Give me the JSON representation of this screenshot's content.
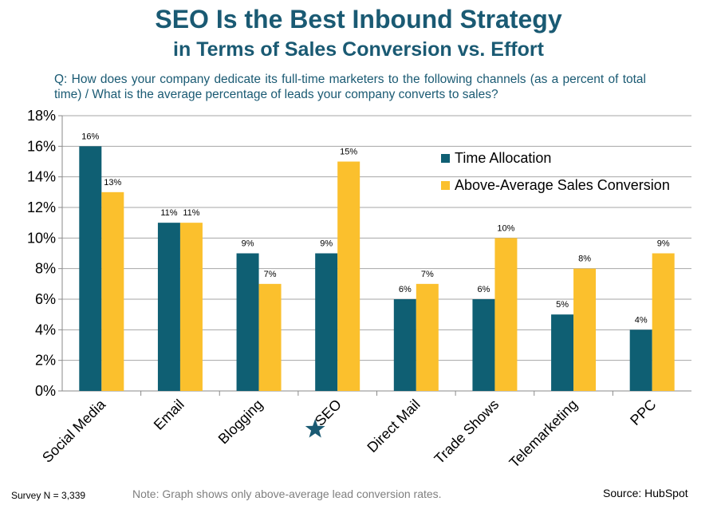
{
  "title_line1": "SEO Is the Best Inbound Strategy",
  "title_line2": "in Terms of Sales Conversion vs. Effort",
  "question": "Q: How does your company dedicate its full-time marketers to the following channels (as a percent of total time) / What is the average percentage of leads your company converts to sales?",
  "footer": {
    "survey": "Survey N = 3,339",
    "note": "Note: Graph shows only above-average lead conversion rates.",
    "source": "Source: HubSpot"
  },
  "highlight": {
    "category": "SEO",
    "icon": "star-icon",
    "color": "#1a5a73"
  },
  "chart_data": {
    "type": "bar",
    "categories": [
      "Social Media",
      "Email",
      "Blogging",
      "SEO",
      "Direct Mail",
      "Trade Shows",
      "Telemarketing",
      "PPC"
    ],
    "series": [
      {
        "name": "Time Allocation",
        "values": [
          16,
          11,
          9,
          9,
          6,
          6,
          5,
          4
        ],
        "color": "#0f5f73"
      },
      {
        "name": "Above-Average Sales Conversion",
        "values": [
          13,
          11,
          7,
          15,
          7,
          10,
          8,
          9
        ],
        "color": "#fbc02d"
      }
    ],
    "data_labels": [
      [
        "16%",
        "11%",
        "9%",
        "9%",
        "6%",
        "6%",
        "5%",
        "4%"
      ],
      [
        "13%",
        "11%",
        "7%",
        "15%",
        "7%",
        "10%",
        "8%",
        "9%"
      ]
    ],
    "y_tick_labels": [
      "0%",
      "2%",
      "4%",
      "6%",
      "8%",
      "10%",
      "12%",
      "14%",
      "16%",
      "18%"
    ],
    "ylim": [
      0,
      18
    ],
    "y_step": 2,
    "grid": true,
    "legend_position": "upper-right"
  }
}
